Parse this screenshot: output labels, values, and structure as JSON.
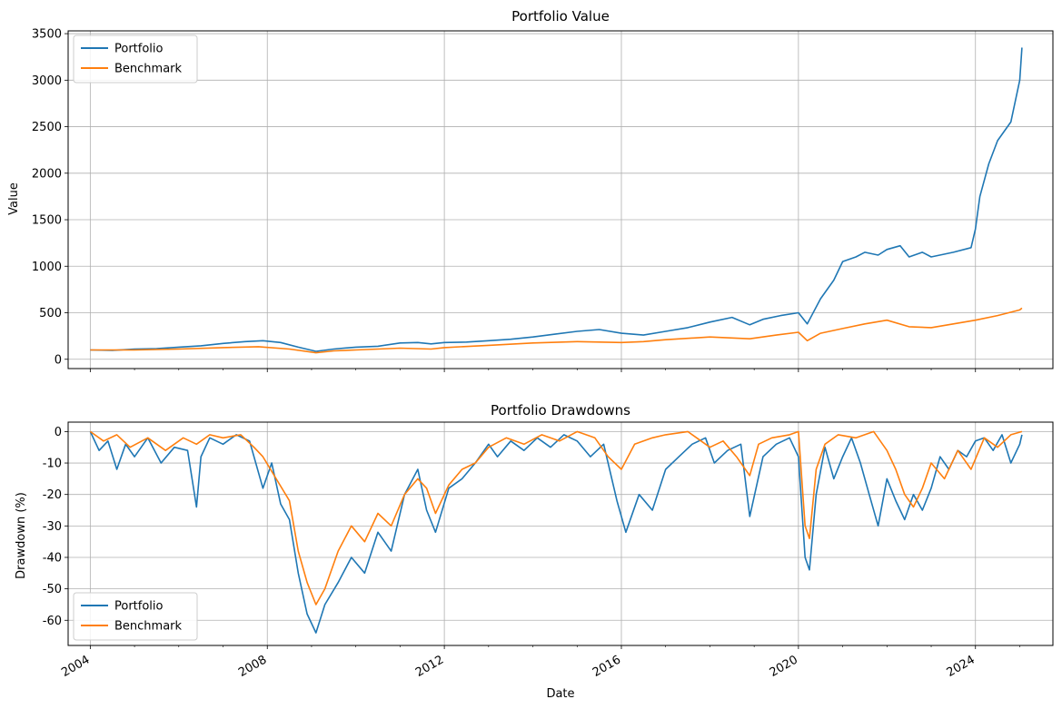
{
  "chart_data": [
    {
      "type": "line",
      "title": "Portfolio Value",
      "xlabel": "",
      "ylabel": "Value",
      "xlim": [
        2003.5,
        2025.75
      ],
      "ylim": [
        -100,
        3530
      ],
      "grid": true,
      "legend": "upper-left",
      "yticks": [
        0,
        500,
        1000,
        1500,
        2000,
        2500,
        3000,
        3500
      ],
      "xticks": [
        2004,
        2008,
        2012,
        2016,
        2020,
        2024
      ],
      "series": [
        {
          "name": "Portfolio",
          "color": "#1f77b4",
          "x": [
            2004.0,
            2004.5,
            2005.0,
            2005.5,
            2006.0,
            2006.5,
            2007.0,
            2007.5,
            2007.9,
            2008.3,
            2008.7,
            2009.1,
            2009.5,
            2010.0,
            2010.5,
            2011.0,
            2011.4,
            2011.7,
            2012.0,
            2012.5,
            2013.0,
            2013.5,
            2014.0,
            2014.5,
            2015.0,
            2015.5,
            2016.0,
            2016.5,
            2017.0,
            2017.5,
            2018.0,
            2018.5,
            2018.9,
            2019.2,
            2019.6,
            2020.0,
            2020.2,
            2020.5,
            2020.8,
            2021.0,
            2021.3,
            2021.5,
            2021.8,
            2022.0,
            2022.3,
            2022.5,
            2022.8,
            2023.0,
            2023.5,
            2023.9,
            2024.0,
            2024.1,
            2024.3,
            2024.5,
            2024.8,
            2025.0,
            2025.05
          ],
          "y": [
            100,
            95,
            110,
            115,
            130,
            145,
            170,
            190,
            200,
            180,
            130,
            85,
            110,
            130,
            140,
            175,
            180,
            165,
            180,
            185,
            200,
            215,
            240,
            270,
            300,
            320,
            280,
            260,
            300,
            340,
            400,
            450,
            370,
            430,
            470,
            500,
            380,
            650,
            850,
            1050,
            1100,
            1150,
            1120,
            1180,
            1220,
            1100,
            1150,
            1100,
            1150,
            1200,
            1400,
            1750,
            2100,
            2350,
            2550,
            3000,
            3350
          ]
        },
        {
          "name": "Benchmark",
          "color": "#ff7f0e",
          "x": [
            2004.0,
            2005.0,
            2006.0,
            2007.0,
            2007.8,
            2008.5,
            2009.1,
            2009.5,
            2010.0,
            2011.0,
            2011.7,
            2012.0,
            2013.0,
            2014.0,
            2015.0,
            2016.0,
            2016.5,
            2017.0,
            2018.0,
            2018.9,
            2019.5,
            2020.0,
            2020.2,
            2020.5,
            2021.0,
            2021.5,
            2022.0,
            2022.5,
            2023.0,
            2023.5,
            2024.0,
            2024.5,
            2025.0,
            2025.05
          ],
          "y": [
            100,
            100,
            110,
            125,
            135,
            110,
            70,
            90,
            100,
            120,
            110,
            125,
            150,
            175,
            190,
            180,
            190,
            210,
            240,
            220,
            260,
            290,
            200,
            280,
            330,
            380,
            420,
            350,
            340,
            380,
            420,
            470,
            530,
            550
          ]
        }
      ]
    },
    {
      "type": "line",
      "title": "Portfolio Drawdowns",
      "xlabel": "Date",
      "ylabel": "Drawdown (%)",
      "xlim": [
        2003.5,
        2025.75
      ],
      "ylim": [
        -68,
        3
      ],
      "grid": true,
      "legend": "lower-left",
      "yticks": [
        0,
        -10,
        -20,
        -30,
        -40,
        -50,
        -60
      ],
      "xticks": [
        2004,
        2008,
        2012,
        2016,
        2020,
        2024
      ],
      "series": [
        {
          "name": "Portfolio",
          "color": "#1f77b4",
          "x": [
            2004.0,
            2004.2,
            2004.4,
            2004.6,
            2004.8,
            2005.0,
            2005.3,
            2005.6,
            2005.9,
            2006.2,
            2006.4,
            2006.5,
            2006.7,
            2007.0,
            2007.3,
            2007.6,
            2007.9,
            2008.1,
            2008.3,
            2008.5,
            2008.7,
            2008.9,
            2009.1,
            2009.3,
            2009.6,
            2009.9,
            2010.2,
            2010.5,
            2010.8,
            2011.1,
            2011.4,
            2011.6,
            2011.8,
            2012.1,
            2012.4,
            2012.7,
            2013.0,
            2013.2,
            2013.5,
            2013.8,
            2014.1,
            2014.4,
            2014.7,
            2015.0,
            2015.3,
            2015.6,
            2015.9,
            2016.1,
            2016.4,
            2016.7,
            2017.0,
            2017.3,
            2017.6,
            2017.9,
            2018.1,
            2018.4,
            2018.7,
            2018.9,
            2019.2,
            2019.5,
            2019.8,
            2020.0,
            2020.15,
            2020.25,
            2020.4,
            2020.6,
            2020.8,
            2021.0,
            2021.2,
            2021.4,
            2021.6,
            2021.8,
            2022.0,
            2022.2,
            2022.4,
            2022.6,
            2022.8,
            2023.0,
            2023.2,
            2023.4,
            2023.6,
            2023.8,
            2024.0,
            2024.2,
            2024.4,
            2024.6,
            2024.8,
            2025.0,
            2025.05
          ],
          "y": [
            0,
            -6,
            -3,
            -12,
            -4,
            -8,
            -2,
            -10,
            -5,
            -6,
            -24,
            -8,
            -2,
            -4,
            -1,
            -3,
            -18,
            -10,
            -23,
            -28,
            -45,
            -58,
            -64,
            -55,
            -48,
            -40,
            -45,
            -32,
            -38,
            -20,
            -12,
            -25,
            -32,
            -18,
            -15,
            -10,
            -4,
            -8,
            -3,
            -6,
            -2,
            -5,
            -1,
            -3,
            -8,
            -4,
            -22,
            -32,
            -20,
            -25,
            -12,
            -8,
            -4,
            -2,
            -10,
            -6,
            -4,
            -27,
            -8,
            -4,
            -2,
            -8,
            -40,
            -44,
            -20,
            -5,
            -15,
            -8,
            -2,
            -10,
            -20,
            -30,
            -15,
            -22,
            -28,
            -20,
            -25,
            -18,
            -8,
            -12,
            -6,
            -8,
            -3,
            -2,
            -6,
            -1,
            -10,
            -4,
            -1
          ]
        },
        {
          "name": "Benchmark",
          "color": "#ff7f0e",
          "x": [
            2004.0,
            2004.3,
            2004.6,
            2004.9,
            2005.3,
            2005.7,
            2006.1,
            2006.4,
            2006.7,
            2007.0,
            2007.4,
            2007.7,
            2007.9,
            2008.2,
            2008.5,
            2008.7,
            2008.9,
            2009.1,
            2009.3,
            2009.6,
            2009.9,
            2010.2,
            2010.5,
            2010.8,
            2011.1,
            2011.4,
            2011.6,
            2011.8,
            2012.1,
            2012.4,
            2012.7,
            2013.0,
            2013.4,
            2013.8,
            2014.2,
            2014.6,
            2015.0,
            2015.4,
            2015.7,
            2016.0,
            2016.3,
            2016.7,
            2017.0,
            2017.5,
            2018.0,
            2018.3,
            2018.6,
            2018.9,
            2019.1,
            2019.4,
            2019.8,
            2020.0,
            2020.15,
            2020.25,
            2020.4,
            2020.6,
            2020.9,
            2021.3,
            2021.7,
            2022.0,
            2022.2,
            2022.4,
            2022.6,
            2022.8,
            2023.0,
            2023.3,
            2023.6,
            2023.9,
            2024.2,
            2024.5,
            2024.8,
            2025.05
          ],
          "y": [
            0,
            -3,
            -1,
            -5,
            -2,
            -6,
            -2,
            -4,
            -1,
            -2,
            -1,
            -5,
            -8,
            -15,
            -22,
            -38,
            -48,
            -55,
            -50,
            -38,
            -30,
            -35,
            -26,
            -30,
            -20,
            -15,
            -18,
            -26,
            -17,
            -12,
            -10,
            -5,
            -2,
            -4,
            -1,
            -3,
            0,
            -2,
            -8,
            -12,
            -4,
            -2,
            -1,
            0,
            -5,
            -3,
            -8,
            -14,
            -4,
            -2,
            -1,
            0,
            -30,
            -34,
            -12,
            -4,
            -1,
            -2,
            0,
            -6,
            -12,
            -20,
            -24,
            -18,
            -10,
            -15,
            -6,
            -12,
            -2,
            -5,
            -1,
            0
          ]
        }
      ]
    }
  ]
}
